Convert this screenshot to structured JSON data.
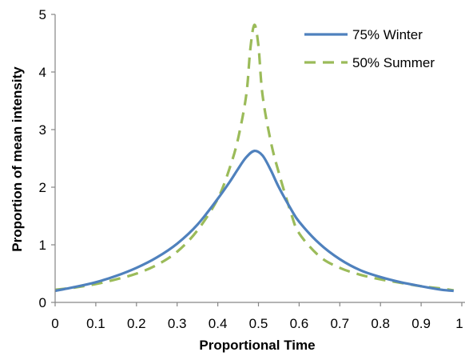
{
  "chart_data": {
    "type": "line",
    "title": "",
    "xlabel": "Proportional Time",
    "ylabel": "Proportion of mean intensity",
    "xlim": [
      0,
      1
    ],
    "ylim": [
      0,
      5
    ],
    "xticks": [
      "0",
      "0.1",
      "0.2",
      "0.3",
      "0.4",
      "0.5",
      "0.6",
      "0.7",
      "0.8",
      "0.9",
      "1"
    ],
    "yticks": [
      "0",
      "1",
      "2",
      "3",
      "4",
      "5"
    ],
    "grid": false,
    "legend": "top-right",
    "series": [
      {
        "name": "75% Winter",
        "style": "solid",
        "color": "#4F81BD",
        "x": [
          0,
          0.05,
          0.1,
          0.15,
          0.2,
          0.25,
          0.3,
          0.35,
          0.4,
          0.43,
          0.45,
          0.47,
          0.49,
          0.51,
          0.53,
          0.55,
          0.58,
          0.6,
          0.65,
          0.7,
          0.75,
          0.8,
          0.85,
          0.9,
          0.95,
          0.98
        ],
        "y": [
          0.2,
          0.27,
          0.35,
          0.46,
          0.6,
          0.78,
          1.02,
          1.35,
          1.8,
          2.1,
          2.32,
          2.52,
          2.63,
          2.55,
          2.3,
          2.0,
          1.62,
          1.4,
          1.02,
          0.75,
          0.56,
          0.44,
          0.35,
          0.28,
          0.22,
          0.2
        ]
      },
      {
        "name": "50% Summer",
        "style": "dashed",
        "color": "#9BBB59",
        "x": [
          0,
          0.05,
          0.1,
          0.15,
          0.2,
          0.25,
          0.3,
          0.35,
          0.4,
          0.43,
          0.45,
          0.47,
          0.48,
          0.49,
          0.5,
          0.51,
          0.53,
          0.55,
          0.58,
          0.6,
          0.65,
          0.7,
          0.75,
          0.8,
          0.85,
          0.9,
          0.95,
          0.98
        ],
        "y": [
          0.22,
          0.26,
          0.32,
          0.4,
          0.5,
          0.65,
          0.88,
          1.25,
          1.8,
          2.35,
          2.85,
          3.6,
          4.4,
          4.82,
          4.45,
          3.6,
          2.8,
          2.25,
          1.55,
          1.2,
          0.8,
          0.6,
          0.48,
          0.4,
          0.34,
          0.28,
          0.24,
          0.21
        ]
      }
    ]
  }
}
